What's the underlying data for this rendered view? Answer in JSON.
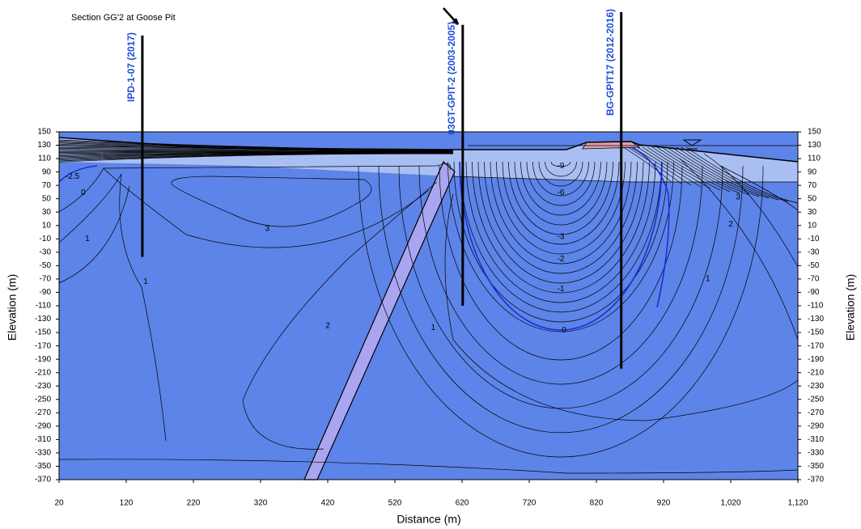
{
  "chart_data": {
    "type": "section",
    "title": "Section GG'2 at Goose Pit",
    "xlabel": "Distance (m)",
    "ylabel": "Elevation (m)",
    "y2label": "Elevation (m)",
    "xlim": [
      20,
      1120
    ],
    "xticks": [
      20,
      120,
      220,
      320,
      420,
      520,
      620,
      720,
      820,
      920,
      {
        "value": 1020,
        "label": "1,020"
      },
      {
        "value": 1120,
        "label": "1,120"
      }
    ],
    "ylim": [
      -370,
      150
    ],
    "yticks": [
      150,
      130,
      110,
      90,
      70,
      50,
      30,
      10,
      -10,
      -30,
      -50,
      -70,
      -90,
      -110,
      -130,
      -150,
      -170,
      -190,
      -210,
      -230,
      -250,
      -270,
      -290,
      -310,
      -330,
      -350,
      -370
    ],
    "y2lim": [
      -370,
      150
    ],
    "y2ticks": [
      150,
      130,
      110,
      90,
      70,
      50,
      30,
      10,
      -10,
      -30,
      -50,
      -70,
      -90,
      -110,
      -130,
      -150,
      -170,
      -190,
      -210,
      -230,
      -250,
      -270,
      -290,
      -310,
      -330,
      -350,
      -370
    ],
    "boreholes": [
      {
        "name": "IPD-1-07 (2017)",
        "x": 144,
        "top": 294,
        "bottom": -37
      },
      {
        "name": "03GT-GPIT-2 (2003-2005)",
        "x": 621,
        "top": 310,
        "bottom": -110
      },
      {
        "name": "BG-GPIT17 (2012-2016)",
        "x": 857,
        "top": 329,
        "bottom": -204
      }
    ],
    "contour_labels": [
      {
        "value": -9,
        "x": 767,
        "y": 99
      },
      {
        "value": -6,
        "x": 767,
        "y": 59
      },
      {
        "value": -3,
        "x": 767,
        "y": -7
      },
      {
        "value": -2,
        "x": 767,
        "y": -40
      },
      {
        "value": -1,
        "x": 767,
        "y": -85
      },
      {
        "value": 0,
        "x": 772,
        "y": -147
      },
      {
        "value": 3,
        "x": 330,
        "y": 5
      },
      {
        "value": 1,
        "x": 62,
        "y": -10
      },
      {
        "value": 0,
        "x": 56,
        "y": 59
      },
      {
        "value": -2.5,
        "x": 40,
        "y": 83
      },
      {
        "value": 1,
        "x": 149,
        "y": -74
      },
      {
        "value": 2,
        "x": 420,
        "y": -140
      },
      {
        "value": 1,
        "x": 577,
        "y": -143
      },
      {
        "value": 3,
        "x": 1031,
        "y": 52
      },
      {
        "value": 2,
        "x": 1020,
        "y": 12
      },
      {
        "value": 1,
        "x": 986,
        "y": -70
      }
    ]
  }
}
